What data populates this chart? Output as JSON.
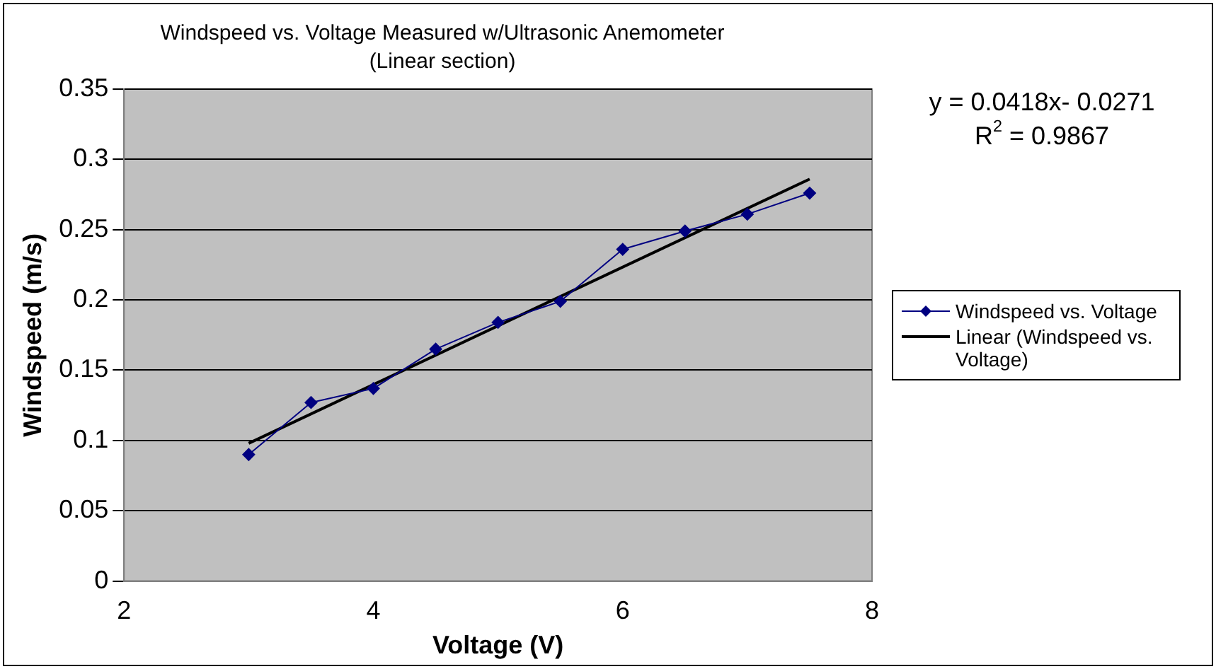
{
  "chart_data": {
    "type": "line",
    "title": "Windspeed vs. Voltage Measured w/Ultrasonic Anemometer",
    "subtitle": "(Linear section)",
    "xlabel": "Voltage (V)",
    "ylabel": "Windspeed (m/s)",
    "xlim": [
      2,
      8
    ],
    "xticks": [
      2,
      4,
      6,
      8
    ],
    "ylim": [
      0,
      0.35
    ],
    "yticks": [
      0,
      0.05,
      0.1,
      0.15,
      0.2,
      0.25,
      0.3,
      0.35
    ],
    "grid": "y",
    "legend": "right",
    "marker": "diamond",
    "annotations": [
      "y = 0.0418x- 0.0271",
      "R$^{2}$ = 0.9867"
    ],
    "series": [
      {
        "name": "Windspeed vs. Voltage",
        "color": "#000080",
        "x": [
          3,
          3.5,
          4,
          4.5,
          5,
          5.5,
          6,
          6.5,
          7,
          7.5
        ],
        "values": [
          0.09,
          0.127,
          0.137,
          0.165,
          0.184,
          0.199,
          0.236,
          0.249,
          0.261,
          0.276
        ]
      },
      {
        "name": "Linear (Windspeed vs. Voltage)",
        "marker": "none",
        "color": "#000000",
        "x": [
          3,
          7.5
        ],
        "values": [
          0.098,
          0.286
        ]
      }
    ]
  }
}
